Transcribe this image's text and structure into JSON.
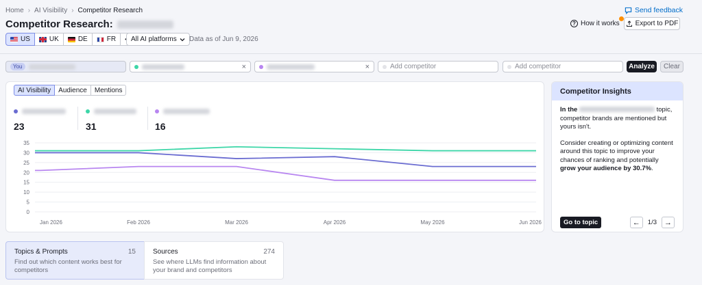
{
  "breadcrumb": [
    "Home",
    "AI Visibility",
    "Competitor Research"
  ],
  "page_title": "Competitor Research:",
  "header": {
    "send_feedback": "Send feedback",
    "how_it_works": "How it works",
    "export_pdf": "Export to PDF"
  },
  "countries": [
    {
      "code": "US",
      "flag": "flag-us",
      "active": true
    },
    {
      "code": "UK",
      "flag": "flag-uk",
      "active": false
    },
    {
      "code": "DE",
      "flag": "flag-de",
      "active": false
    },
    {
      "code": "FR",
      "flag": "flag-fr",
      "active": false
    }
  ],
  "more_label": "•••",
  "platform_select": "All AI platforms",
  "data_as_of": "Data as of Jun 9, 2026",
  "competitors": {
    "you_tag": "You",
    "placeholder_1": "Add competitor",
    "placeholder_2": "Add competitor",
    "analyze": "Analyze",
    "clear": "Clear"
  },
  "tabs": [
    "AI Visibility",
    "Audience",
    "Mentions"
  ],
  "metrics": [
    {
      "value": "23",
      "color": "#6a6cd1"
    },
    {
      "value": "31",
      "color": "#3dd6a8"
    },
    {
      "value": "16",
      "color": "#b886f0"
    }
  ],
  "chart_data": {
    "type": "line",
    "x": [
      "Jan 2026",
      "Feb 2026",
      "Mar 2026",
      "Apr 2026",
      "May 2026",
      "Jun 2026"
    ],
    "ylim": [
      0,
      35
    ],
    "yticks": [
      0,
      5,
      10,
      15,
      20,
      25,
      30,
      35
    ],
    "grid": true,
    "series": [
      {
        "color": "#3dd6a8",
        "values": [
          31,
          31,
          33,
          32,
          31,
          31
        ]
      },
      {
        "color": "#6a6cd1",
        "values": [
          30,
          30,
          27,
          28,
          23,
          23
        ]
      },
      {
        "color": "#b886f0",
        "values": [
          21,
          23,
          23,
          16,
          16,
          16
        ]
      }
    ]
  },
  "insights": {
    "title": "Competitor Insights",
    "p1_pre": "In the",
    "p1_post": "topic, competitor brands are mentioned but yours isn't.",
    "p2_pre": "Consider creating or optimizing content around this topic to improve your chances of ranking and potentially",
    "p2_bold": "grow your audience by 30.7%",
    "p2_end": ".",
    "go_to_topic": "Go to topic",
    "page": "1/3"
  },
  "bottom_cards": [
    {
      "title": "Topics & Prompts",
      "count": "15",
      "desc": "Find out which content works best for competitors"
    },
    {
      "title": "Sources",
      "count": "274",
      "desc": "See where LLMs find information about your brand and competitors"
    }
  ]
}
